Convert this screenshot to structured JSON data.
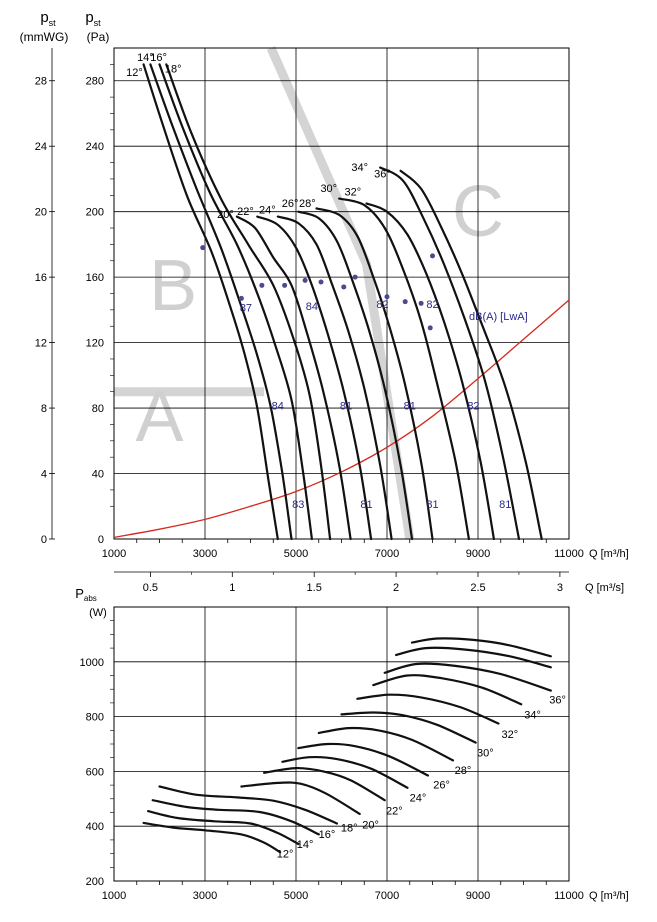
{
  "colors": {
    "curve": "#111111",
    "grid": "#000000",
    "zone": "#d4d4d4",
    "zone_text": "#d0d0d0",
    "noise_curve": "#d42a1c",
    "noise_text": "#2b2a8a",
    "dot": "#4a4a8c"
  },
  "chart_data": [
    {
      "type": "line",
      "name": "static-pressure",
      "ylabel_pa": {
        "main": "p",
        "sub": "st",
        "unit": "(Pa)"
      },
      "ylabel_mmwg": {
        "main": "p",
        "sub": "st",
        "unit": "(mmWG)"
      },
      "xlabel_m3h": "Q [m³/h]",
      "xlabel_m3s": "Q [m³/s]",
      "xlim": [
        1000,
        11000
      ],
      "ylim": [
        0,
        300
      ],
      "x_ticks": [
        "1000",
        "3000",
        "5000",
        "7000",
        "9000",
        "11000"
      ],
      "y_ticks_pa": [
        "0",
        "40",
        "80",
        "120",
        "160",
        "200",
        "240",
        "280"
      ],
      "y_ticks_mmwg": [
        "0",
        "4",
        "8",
        "12",
        "16",
        "20",
        "24",
        "28"
      ],
      "x2_ticks": [
        "0.5",
        "1",
        "1.5",
        "2",
        "2.5",
        "3"
      ],
      "x2_tick_values": [
        0.5,
        1,
        1.5,
        2,
        2.5,
        3
      ],
      "zones": [
        {
          "label": "A",
          "x": 2000,
          "y": 60
        },
        {
          "label": "B",
          "x": 2300,
          "y": 140
        },
        {
          "label": "C",
          "x": 9000,
          "y": 185
        }
      ],
      "zone_lines": [
        {
          "x": [
            4450,
            6550,
            7500
          ],
          "y": [
            300,
            168,
            0
          ]
        },
        {
          "x": [
            1000,
            4300
          ],
          "y": [
            90,
            90
          ]
        }
      ],
      "noise_label": "dB(A) [LwA]",
      "noise_curve": {
        "x": [
          1000,
          2000,
          3000,
          4000,
          5000,
          6000,
          7000,
          8000,
          9000,
          10000,
          11000
        ],
        "y": [
          1,
          6,
          12,
          20,
          29,
          41,
          56,
          75,
          98,
          122,
          146
        ]
      },
      "series": [
        {
          "name": "12°",
          "x": [
            1650,
            2050,
            2600,
            3150,
            3600,
            3900,
            4150,
            4400,
            4600
          ],
          "y": [
            290,
            255,
            210,
            175,
            138,
            110,
            80,
            35,
            0
          ]
        },
        {
          "name": "14°",
          "x": [
            1800,
            2250,
            2800,
            3350,
            3800,
            4150,
            4450,
            4700,
            4900
          ],
          "y": [
            290,
            255,
            215,
            178,
            142,
            112,
            80,
            40,
            0
          ]
        },
        {
          "name": "16°",
          "x": [
            2000,
            2500,
            3100,
            3700,
            4150,
            4550,
            4900,
            5150,
            5350
          ],
          "y": [
            290,
            252,
            212,
            180,
            150,
            118,
            85,
            42,
            0
          ]
        },
        {
          "name": "18°",
          "x": [
            2150,
            2700,
            3350,
            3950,
            4500,
            4950,
            5300,
            5550,
            5750
          ],
          "y": [
            290,
            248,
            208,
            180,
            155,
            122,
            88,
            45,
            0
          ]
        },
        {
          "name": "20°",
          "x": [
            3700,
            4100,
            4500,
            4900,
            5250,
            5600,
            5950,
            6200
          ],
          "y": [
            197,
            190,
            172,
            155,
            125,
            90,
            45,
            0
          ]
        },
        {
          "name": "22°",
          "x": [
            4150,
            4600,
            5000,
            5350,
            5700,
            6050,
            6400,
            6650
          ],
          "y": [
            197,
            192,
            178,
            155,
            125,
            90,
            45,
            0
          ]
        },
        {
          "name": "24°",
          "x": [
            4600,
            5050,
            5450,
            5800,
            6150,
            6500,
            6850,
            7100
          ],
          "y": [
            197,
            193,
            180,
            155,
            127,
            92,
            45,
            0
          ]
        },
        {
          "name": "26°",
          "x": [
            5050,
            5500,
            5900,
            6250,
            6600,
            6950,
            7300,
            7550
          ],
          "y": [
            200,
            196,
            182,
            157,
            128,
            92,
            45,
            0
          ]
        },
        {
          "name": "28°",
          "x": [
            5450,
            5950,
            6350,
            6700,
            7050,
            7400,
            7750,
            8000
          ],
          "y": [
            202,
            198,
            185,
            160,
            130,
            94,
            47,
            0
          ]
        },
        {
          "name": "30°",
          "x": [
            5950,
            6500,
            6950,
            7350,
            7750,
            8100,
            8500,
            8800
          ],
          "y": [
            208,
            204,
            190,
            165,
            133,
            95,
            48,
            0
          ]
        },
        {
          "name": "32°",
          "x": [
            6550,
            7000,
            7450,
            7850,
            8250,
            8650,
            9050,
            9350
          ],
          "y": [
            205,
            200,
            186,
            163,
            133,
            96,
            48,
            0
          ]
        },
        {
          "name": "34°",
          "x": [
            6850,
            7350,
            7800,
            8250,
            8700,
            9150,
            9550,
            9900
          ],
          "y": [
            227,
            219,
            196,
            168,
            135,
            97,
            50,
            0
          ]
        },
        {
          "name": "36°",
          "x": [
            7300,
            7750,
            8200,
            8650,
            9100,
            9600,
            10050,
            10400
          ],
          "y": [
            225,
            214,
            190,
            162,
            130,
            93,
            47,
            0
          ]
        }
      ],
      "dots": {
        "x": [
          2950,
          3800,
          4250,
          4750,
          5200,
          5550,
          6050,
          6300,
          7000,
          7400,
          7750,
          8000,
          7950
        ],
        "y": [
          178,
          147,
          155,
          155,
          158,
          157,
          154,
          160,
          148,
          145,
          144,
          173,
          129
        ]
      },
      "data_labels": [
        {
          "text": "87",
          "x": 3900,
          "y": 139
        },
        {
          "text": "84",
          "x": 5350,
          "y": 140
        },
        {
          "text": "82",
          "x": 6900,
          "y": 141
        },
        {
          "text": "82",
          "x": 8000,
          "y": 141
        },
        {
          "text": "84",
          "x": 4600,
          "y": 79
        },
        {
          "text": "81",
          "x": 6100,
          "y": 79
        },
        {
          "text": "81",
          "x": 7500,
          "y": 79
        },
        {
          "text": "82",
          "x": 8900,
          "y": 79
        },
        {
          "text": "83",
          "x": 5050,
          "y": 19
        },
        {
          "text": "81",
          "x": 6550,
          "y": 19
        },
        {
          "text": "81",
          "x": 8000,
          "y": 19
        },
        {
          "text": "81",
          "x": 9600,
          "y": 19
        }
      ],
      "series_labels": [
        {
          "text": "12°",
          "x": 1450,
          "y": 283
        },
        {
          "text": "14°",
          "x": 1690,
          "y": 292
        },
        {
          "text": "16°",
          "x": 1980,
          "y": 292
        },
        {
          "text": "18°",
          "x": 2300,
          "y": 285
        },
        {
          "text": "20°",
          "x": 3450,
          "y": 196
        },
        {
          "text": "22°",
          "x": 3890,
          "y": 198
        },
        {
          "text": "24°",
          "x": 4370,
          "y": 199
        },
        {
          "text": "26°",
          "x": 4870,
          "y": 203
        },
        {
          "text": "28°",
          "x": 5250,
          "y": 203
        },
        {
          "text": "30°",
          "x": 5720,
          "y": 212
        },
        {
          "text": "32°",
          "x": 6250,
          "y": 210
        },
        {
          "text": "34°",
          "x": 6400,
          "y": 225
        },
        {
          "text": "36°",
          "x": 6900,
          "y": 221
        }
      ]
    },
    {
      "type": "line",
      "name": "absorbed-power",
      "ylabel": {
        "main": "P",
        "sub": "abs",
        "unit": "(W)"
      },
      "xlabel": "Q [m³/h]",
      "xlim": [
        1000,
        11000
      ],
      "ylim": [
        200,
        1200
      ],
      "x_ticks": [
        "1000",
        "3000",
        "5000",
        "7000",
        "9000",
        "11000"
      ],
      "y_ticks": [
        "200",
        "400",
        "600",
        "800",
        "1000"
      ],
      "series": [
        {
          "name": "12°",
          "x": [
            1650,
            2300,
            3000,
            3800,
            4300,
            4650
          ],
          "y": [
            412,
            395,
            385,
            370,
            340,
            305
          ]
        },
        {
          "name": "14°",
          "x": [
            1750,
            2400,
            3200,
            4000,
            4600,
            5050
          ],
          "y": [
            455,
            430,
            418,
            410,
            375,
            335
          ]
        },
        {
          "name": "16°",
          "x": [
            1850,
            2600,
            3300,
            4200,
            4900,
            5500
          ],
          "y": [
            495,
            470,
            460,
            452,
            418,
            370
          ]
        },
        {
          "name": "18°",
          "x": [
            2000,
            2800,
            3700,
            4500,
            5200,
            5900
          ],
          "y": [
            545,
            515,
            505,
            493,
            460,
            410
          ]
        },
        {
          "name": "20°",
          "x": [
            3800,
            4600,
            5100,
            5650,
            6400
          ],
          "y": [
            545,
            558,
            555,
            520,
            445
          ]
        },
        {
          "name": "22°",
          "x": [
            4300,
            5000,
            5600,
            6200,
            6950
          ],
          "y": [
            595,
            612,
            600,
            568,
            495
          ]
        },
        {
          "name": "24°",
          "x": [
            4700,
            5300,
            5900,
            6650,
            7450
          ],
          "y": [
            635,
            652,
            645,
            610,
            540
          ]
        },
        {
          "name": "26°",
          "x": [
            5050,
            5700,
            6300,
            7050,
            7900
          ],
          "y": [
            685,
            700,
            692,
            655,
            585
          ]
        },
        {
          "name": "28°",
          "x": [
            5500,
            6150,
            6800,
            7550,
            8450
          ],
          "y": [
            740,
            758,
            750,
            715,
            640
          ]
        },
        {
          "name": "30°",
          "x": [
            6000,
            6700,
            7350,
            8100,
            8950
          ],
          "y": [
            808,
            815,
            805,
            770,
            705
          ]
        },
        {
          "name": "32°",
          "x": [
            6350,
            7050,
            7750,
            8600,
            9450
          ],
          "y": [
            865,
            880,
            870,
            835,
            775
          ]
        },
        {
          "name": "34°",
          "x": [
            6700,
            7450,
            8200,
            9100,
            9950
          ],
          "y": [
            915,
            950,
            940,
            905,
            845
          ]
        },
        {
          "name": "36°",
          "x": [
            6950,
            7650,
            8500,
            9500,
            10600
          ],
          "y": [
            960,
            992,
            985,
            955,
            895
          ]
        },
        {
          "name": "",
          "x": [
            7200,
            7850,
            8700,
            9700,
            10600
          ],
          "y": [
            1025,
            1050,
            1045,
            1020,
            980
          ]
        },
        {
          "name": "",
          "x": [
            7550,
            8100,
            8900,
            9700,
            10600
          ],
          "y": [
            1070,
            1085,
            1080,
            1060,
            1020
          ]
        }
      ],
      "series_labels": [
        {
          "text": "12°",
          "x": 4760,
          "y": 285
        },
        {
          "text": "14°",
          "x": 5200,
          "y": 320
        },
        {
          "text": "16°",
          "x": 5680,
          "y": 357
        },
        {
          "text": "18°",
          "x": 6170,
          "y": 380
        },
        {
          "text": "20°",
          "x": 6640,
          "y": 392
        },
        {
          "text": "22°",
          "x": 7160,
          "y": 442
        },
        {
          "text": "24°",
          "x": 7680,
          "y": 490
        },
        {
          "text": "26°",
          "x": 8200,
          "y": 538
        },
        {
          "text": "28°",
          "x": 8670,
          "y": 590
        },
        {
          "text": "30°",
          "x": 9160,
          "y": 655
        },
        {
          "text": "32°",
          "x": 9700,
          "y": 722
        },
        {
          "text": "34°",
          "x": 10200,
          "y": 793
        },
        {
          "text": "36°",
          "x": 10750,
          "y": 848
        }
      ]
    }
  ]
}
